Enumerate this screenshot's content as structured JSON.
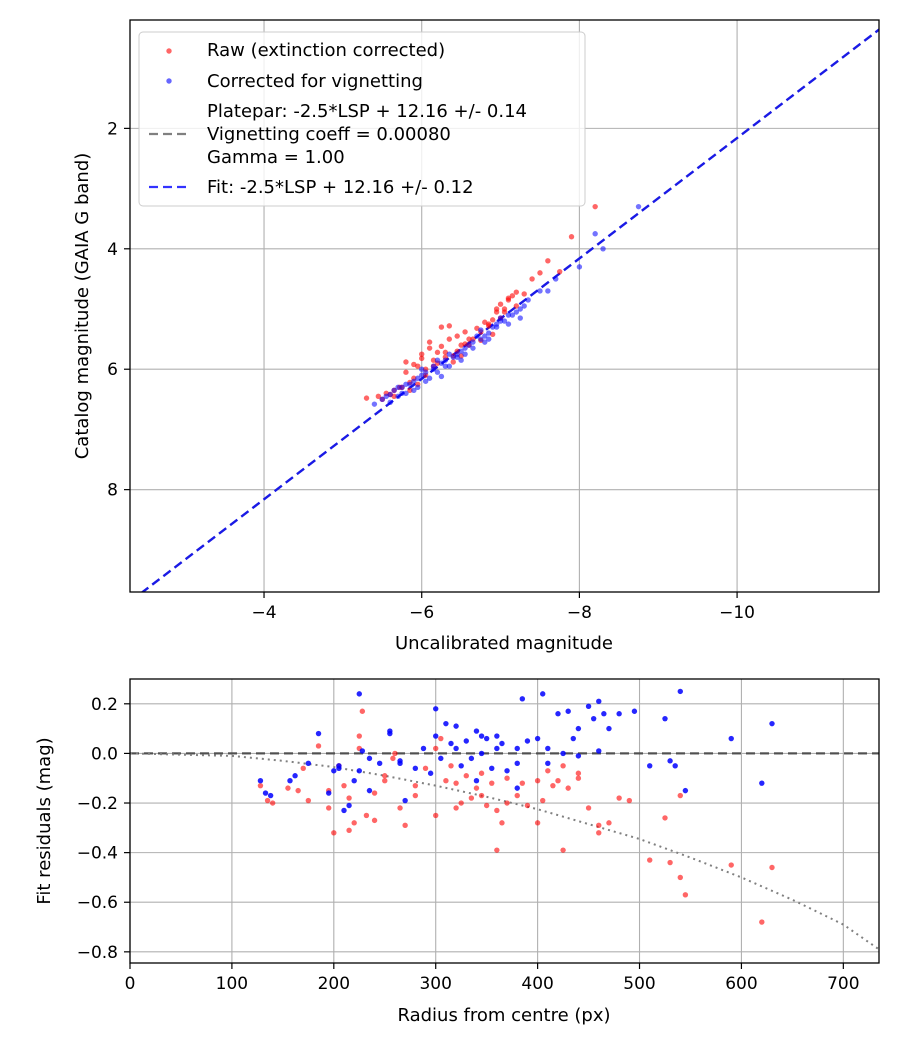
{
  "chart_data": [
    {
      "type": "scatter",
      "xlabel": "Uncalibrated magnitude",
      "ylabel": "Catalog magnitude (GAIA G band)",
      "xlim": [
        -2.3,
        -11.8
      ],
      "ylim": [
        9.7,
        0.2
      ],
      "xticks": [
        -4,
        -6,
        -8,
        -10
      ],
      "xtick_labels": [
        "−4",
        "−6",
        "−8",
        "−10"
      ],
      "yticks": [
        2,
        4,
        6,
        8
      ],
      "ytick_labels": [
        "2",
        "4",
        "6",
        "8"
      ],
      "grid": true,
      "legend_position": "top-left",
      "legend": [
        {
          "label": "Raw (extinction corrected)",
          "marker": "dot",
          "color": "#ff0000"
        },
        {
          "label": "Corrected for vignetting",
          "marker": "dot",
          "color": "#0000ff"
        },
        {
          "label_lines": [
            "Platepar: -2.5*LSP + 12.16 +/- 0.14",
            "Vignetting coeff = 0.00080",
            "Gamma = 1.00"
          ],
          "marker": "dashed-line",
          "color": "#808080"
        },
        {
          "label": "Fit: -2.5*LSP + 12.16 +/- 0.12",
          "marker": "dashed-line",
          "color": "#0000ff"
        }
      ],
      "fit_line": {
        "slope": 1.0,
        "intercept": 12.16,
        "color": "#0000ff"
      },
      "platepar_line": {
        "slope": 1.0,
        "intercept": 12.16,
        "color": "#808080"
      },
      "series": [
        {
          "name": "Raw (extinction corrected)",
          "color": "#ff0000",
          "x": [
            -5.3,
            -5.45,
            -5.55,
            -5.65,
            -5.72,
            -5.8,
            -5.85,
            -5.9,
            -5.95,
            -6.0,
            -6.05,
            -6.1,
            -6.15,
            -6.2,
            -6.25,
            -6.3,
            -6.35,
            -6.4,
            -6.45,
            -6.5,
            -6.55,
            -6.6,
            -6.65,
            -6.7,
            -6.75,
            -6.8,
            -6.85,
            -6.9,
            -6.95,
            -7.0,
            -7.05,
            -7.1,
            -7.15,
            -7.2,
            -7.3,
            -7.4,
            -7.6,
            -7.75,
            -7.9,
            -8.2,
            -5.5,
            -5.6,
            -5.75,
            -5.9,
            -6.05,
            -6.2,
            -6.3,
            -6.45,
            -6.6,
            -6.75,
            -6.9,
            -7.05,
            -7.2,
            -6.15,
            -6.5,
            -6.95,
            -5.8,
            -6.35,
            -6.85,
            -7.1,
            -5.65,
            -6.0,
            -6.25,
            -6.55,
            -5.95,
            -6.4,
            -7.0,
            -7.5,
            -6.1,
            -5.85
          ],
          "y": [
            6.48,
            6.45,
            6.4,
            6.35,
            6.3,
            5.88,
            6.35,
            5.92,
            6.25,
            5.82,
            6.1,
            5.55,
            5.95,
            5.72,
            5.62,
            5.8,
            5.28,
            5.78,
            5.45,
            5.6,
            5.38,
            5.5,
            5.5,
            5.32,
            5.38,
            5.22,
            5.28,
            5.18,
            5.05,
            4.92,
            5.0,
            4.82,
            4.78,
            4.72,
            4.75,
            4.5,
            4.2,
            4.38,
            3.8,
            3.3,
            6.5,
            6.42,
            6.3,
            6.15,
            6.0,
            5.9,
            5.72,
            5.7,
            5.6,
            5.52,
            5.42,
            5.05,
            4.95,
            5.85,
            5.78,
            5.0,
            6.05,
            5.5,
            5.25,
            4.85,
            6.45,
            5.75,
            5.3,
            5.58,
            5.95,
            5.88,
            5.15,
            4.4,
            5.65,
            6.22
          ]
        },
        {
          "name": "Corrected for vignetting",
          "color": "#0000ff",
          "x": [
            -5.4,
            -5.5,
            -5.55,
            -5.6,
            -5.65,
            -5.7,
            -5.75,
            -5.8,
            -5.85,
            -5.9,
            -5.95,
            -6.0,
            -6.05,
            -6.1,
            -6.15,
            -6.2,
            -6.25,
            -6.3,
            -6.35,
            -6.4,
            -6.45,
            -6.5,
            -6.55,
            -6.6,
            -6.65,
            -6.7,
            -6.75,
            -6.8,
            -6.85,
            -6.9,
            -6.95,
            -7.0,
            -7.05,
            -7.1,
            -7.15,
            -7.2,
            -7.25,
            -7.3,
            -7.5,
            -7.7,
            -8.0,
            -8.3,
            -8.75,
            -5.6,
            -5.75,
            -5.9,
            -6.05,
            -6.2,
            -6.35,
            -6.5,
            -6.65,
            -6.8,
            -6.95,
            -7.1,
            -7.25,
            -6.3,
            -6.0,
            -6.55,
            -5.8,
            -6.85,
            -7.35,
            -7.6,
            -6.15,
            -6.45,
            -5.7,
            -6.75,
            -7.0,
            -5.95,
            -6.25,
            -8.2
          ],
          "y": [
            6.58,
            6.5,
            6.45,
            6.42,
            6.35,
            6.3,
            6.3,
            6.25,
            6.25,
            6.2,
            6.15,
            6.0,
            6.05,
            6.15,
            5.95,
            5.85,
            5.9,
            5.95,
            5.75,
            5.8,
            5.75,
            5.7,
            5.75,
            5.6,
            5.55,
            5.45,
            5.5,
            5.45,
            5.4,
            5.3,
            5.25,
            5.15,
            5.2,
            5.1,
            5.1,
            5.05,
            5.0,
            4.95,
            4.7,
            4.5,
            4.3,
            4.0,
            3.3,
            6.55,
            6.4,
            6.35,
            6.2,
            6.05,
            5.95,
            5.85,
            5.65,
            5.55,
            5.3,
            5.25,
            5.15,
            5.85,
            6.1,
            5.65,
            6.4,
            5.5,
            4.85,
            4.7,
            6.0,
            5.8,
            6.45,
            5.35,
            5.2,
            6.3,
            6.12,
            3.75
          ]
        }
      ]
    },
    {
      "type": "scatter",
      "xlabel": "Radius from centre (px)",
      "ylabel": "Fit residuals (mag)",
      "xlim": [
        0,
        735
      ],
      "ylim": [
        -0.845,
        0.3
      ],
      "xticks": [
        0,
        100,
        200,
        300,
        400,
        500,
        600,
        700
      ],
      "xtick_labels": [
        "0",
        "100",
        "200",
        "300",
        "400",
        "500",
        "600",
        "700"
      ],
      "yticks": [
        0.2,
        0.0,
        -0.2,
        -0.4,
        -0.6,
        -0.8
      ],
      "ytick_labels": [
        "0.2",
        "0.0",
        "−0.2",
        "−0.4",
        "−0.6",
        "−0.8"
      ],
      "grid": true,
      "zero_line": {
        "y": 0,
        "color": "#404040",
        "style": "dashed"
      },
      "vignetting_curve": {
        "color": "#808080",
        "style": "dotted",
        "x": [
          0,
          100,
          150,
          200,
          250,
          300,
          350,
          400,
          450,
          500,
          550,
          600,
          650,
          700,
          735
        ],
        "y": [
          0,
          -0.01,
          -0.03,
          -0.055,
          -0.09,
          -0.13,
          -0.175,
          -0.225,
          -0.285,
          -0.345,
          -0.42,
          -0.5,
          -0.59,
          -0.69,
          -0.79
        ]
      },
      "series": [
        {
          "name": "Raw (extinction corrected)",
          "color": "#ff0000",
          "x": [
            128,
            135,
            140,
            155,
            165,
            175,
            185,
            195,
            200,
            205,
            210,
            215,
            220,
            225,
            228,
            232,
            240,
            250,
            258,
            265,
            270,
            280,
            290,
            300,
            305,
            310,
            315,
            320,
            325,
            330,
            335,
            340,
            345,
            350,
            355,
            360,
            365,
            370,
            380,
            385,
            390,
            400,
            405,
            410,
            415,
            420,
            425,
            430,
            440,
            450,
            460,
            470,
            480,
            490,
            510,
            525,
            530,
            540,
            545,
            590,
            620,
            630,
            225,
            260,
            300,
            345,
            360,
            400,
            425,
            460,
            195,
            215,
            250,
            280,
            320,
            370,
            440,
            540,
            170,
            240
          ],
          "y": [
            -0.13,
            -0.19,
            -0.2,
            -0.14,
            -0.15,
            -0.19,
            0.03,
            -0.22,
            -0.32,
            -0.05,
            -0.13,
            -0.31,
            -0.28,
            0.07,
            0.17,
            -0.25,
            -0.16,
            -0.11,
            -0.02,
            -0.22,
            -0.29,
            -0.13,
            -0.06,
            -0.25,
            0.06,
            -0.11,
            -0.05,
            -0.22,
            -0.2,
            -0.09,
            -0.18,
            -0.14,
            -0.08,
            -0.21,
            -0.12,
            -0.39,
            -0.28,
            -0.1,
            -0.17,
            -0.12,
            -0.21,
            -0.28,
            -0.19,
            -0.07,
            -0.13,
            -0.11,
            -0.39,
            -0.14,
            -0.08,
            -0.22,
            -0.32,
            -0.28,
            -0.18,
            -0.19,
            -0.43,
            -0.26,
            -0.44,
            -0.5,
            -0.57,
            -0.45,
            -0.68,
            -0.46,
            0.02,
            0.0,
            0.02,
            -0.17,
            -0.23,
            -0.11,
            -0.05,
            -0.29,
            -0.15,
            -0.18,
            -0.09,
            -0.17,
            -0.12,
            -0.2,
            -0.1,
            -0.17,
            -0.06,
            -0.27
          ]
        },
        {
          "name": "Corrected for vignetting",
          "color": "#0000ff",
          "x": [
            128,
            133,
            138,
            157,
            162,
            175,
            185,
            195,
            200,
            205,
            210,
            215,
            220,
            225,
            228,
            235,
            245,
            255,
            265,
            270,
            280,
            288,
            300,
            305,
            310,
            315,
            320,
            325,
            330,
            335,
            340,
            345,
            350,
            355,
            360,
            365,
            370,
            380,
            385,
            390,
            400,
            405,
            410,
            420,
            425,
            430,
            435,
            440,
            450,
            455,
            460,
            465,
            470,
            480,
            495,
            510,
            525,
            535,
            540,
            545,
            590,
            620,
            630,
            225,
            255,
            300,
            320,
            340,
            360,
            380,
            410,
            440,
            460,
            530,
            205,
            235,
            265,
            295,
            345,
            380
          ],
          "y": [
            -0.11,
            -0.16,
            -0.17,
            -0.11,
            -0.09,
            -0.04,
            0.08,
            -0.16,
            -0.07,
            -0.05,
            -0.23,
            -0.21,
            -0.11,
            0.24,
            0.01,
            -0.15,
            -0.04,
            0.09,
            -0.03,
            -0.19,
            -0.06,
            0.02,
            0.18,
            -0.02,
            0.12,
            0.04,
            0.11,
            -0.05,
            0.05,
            -0.02,
            0.09,
            0.07,
            0.06,
            -0.06,
            0.02,
            0.04,
            -0.07,
            -0.04,
            0.22,
            0.05,
            0.06,
            0.24,
            0.02,
            0.16,
            0.0,
            0.17,
            0.06,
            0.1,
            0.19,
            0.14,
            0.21,
            0.16,
            0.1,
            0.16,
            0.17,
            -0.05,
            0.14,
            -0.05,
            0.25,
            -0.15,
            0.06,
            -0.12,
            0.12,
            -0.07,
            0.08,
            0.07,
            0.02,
            -0.11,
            0.07,
            -0.14,
            -0.04,
            -0.01,
            0.01,
            -0.03,
            -0.06,
            -0.02,
            -0.04,
            -0.08,
            0.0,
            0.02
          ]
        }
      ]
    }
  ]
}
